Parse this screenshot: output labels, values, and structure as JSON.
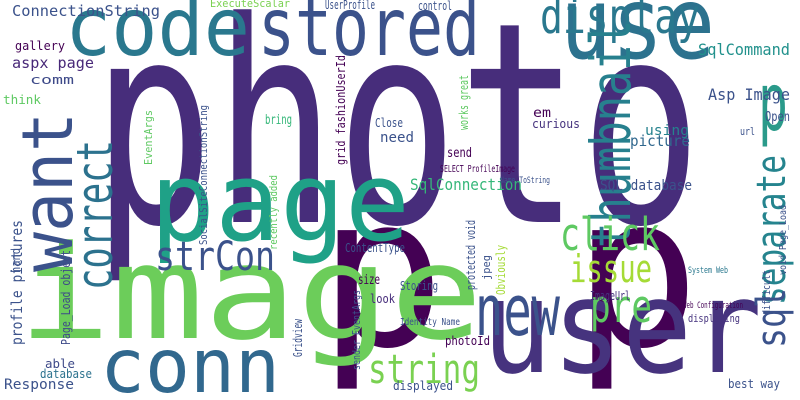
{
  "words": [
    {
      "text": "photo",
      "color": "#472d7b"
    },
    {
      "text": "p p",
      "color": "#440154"
    },
    {
      "text": "user",
      "color": "#46337e"
    },
    {
      "text": "image",
      "color": "#6ccd5a"
    },
    {
      "text": "page",
      "color": "#1fa187"
    },
    {
      "text": "code",
      "color": "#2a788e"
    },
    {
      "text": "stored",
      "color": "#3b528b"
    },
    {
      "text": "use",
      "color": "#2c728e"
    },
    {
      "text": "display",
      "color": "#2a788e"
    },
    {
      "text": "want",
      "color": "#3b528b"
    },
    {
      "text": "correct",
      "color": "#2c728e"
    },
    {
      "text": "thumbnail",
      "color": "#27808e"
    },
    {
      "text": "p",
      "color": "#2a9a8a"
    },
    {
      "text": "conn",
      "color": "#31688e"
    },
    {
      "text": "new",
      "color": "#3b528b"
    },
    {
      "text": "click",
      "color": "#5ec962"
    },
    {
      "text": "issue",
      "color": "#a5db36"
    },
    {
      "text": "pre",
      "color": "#5ec962"
    },
    {
      "text": "separate",
      "color": "#25848e"
    },
    {
      "text": "sql",
      "color": "#3b528b"
    },
    {
      "text": "strCon",
      "color": "#3b528b"
    },
    {
      "text": "string",
      "color": "#7ad151"
    },
    {
      "text": "SqlCommand",
      "color": "#21918c"
    },
    {
      "text": "Asp Image",
      "color": "#3b528b"
    },
    {
      "text": "ConnectionString",
      "color": "#3b528b"
    },
    {
      "text": "aspx page",
      "color": "#482878"
    },
    {
      "text": "gallery",
      "color": "#440154"
    },
    {
      "text": "comm",
      "color": "#3e4a89"
    },
    {
      "text": "think",
      "color": "#5ec962"
    },
    {
      "text": "profile pictures",
      "color": "#3b528b"
    },
    {
      "text": "Page_Load object",
      "color": "#3e4a89"
    },
    {
      "text": "able",
      "color": "#3e4a89"
    },
    {
      "text": "database",
      "color": "#2c728e"
    },
    {
      "text": "Response",
      "color": "#3b528b"
    },
    {
      "text": "SqlConnection",
      "color": "#35b779"
    },
    {
      "text": "SQL database",
      "color": "#3b528b"
    },
    {
      "text": "picture",
      "color": "#31688e"
    },
    {
      "text": "using",
      "color": "#26828e"
    },
    {
      "text": "Open",
      "color": "#3b528b"
    },
    {
      "text": "em",
      "color": "#440154"
    },
    {
      "text": "curious",
      "color": "#46337e"
    },
    {
      "text": "Close",
      "color": "#3b528b"
    },
    {
      "text": "need",
      "color": "#3b528b"
    },
    {
      "text": "bring",
      "color": "#35b779"
    },
    {
      "text": "size",
      "color": "#440154"
    },
    {
      "text": "Storing",
      "color": "#3b528b"
    },
    {
      "text": "look",
      "color": "#472d7b"
    },
    {
      "text": "photoId",
      "color": "#440154"
    },
    {
      "text": "displayed",
      "color": "#3b528b"
    },
    {
      "text": "ImageUrl",
      "color": "#46337e"
    },
    {
      "text": "displaying",
      "color": "#46337e"
    },
    {
      "text": "best way",
      "color": "#3b528b"
    },
    {
      "text": "ExecuteScalar",
      "color": "#7ad151"
    },
    {
      "text": "UserProfile",
      "color": "#3b528b"
    },
    {
      "text": "control",
      "color": "#3b528b"
    },
    {
      "text": "ContentType",
      "color": "#3b528b"
    },
    {
      "text": "send",
      "color": "#440154"
    },
    {
      "text": "Gridview",
      "color": "#3b528b"
    },
    {
      "text": "recently added",
      "color": "#5ec962"
    },
    {
      "text": "Obviously",
      "color": "#a5db36"
    },
    {
      "text": "jpeg",
      "color": "#3b528b"
    },
    {
      "text": "works great",
      "color": "#5ec962"
    },
    {
      "text": "url",
      "color": "#3b528b"
    },
    {
      "text": "difficult",
      "color": "#3b528b"
    },
    {
      "text": "void Page_Load",
      "color": "#3b528b"
    },
    {
      "text": "SocialSiteConnectionString",
      "color": "#3b528b"
    },
    {
      "text": "EventArgs",
      "color": "#5ec962"
    },
    {
      "text": "grid fashionUserId",
      "color": "#440154"
    },
    {
      "text": "Identity Name",
      "color": "#3b528b"
    },
    {
      "text": "sender EventArgs",
      "color": "#3b528b"
    },
    {
      "text": "Web Configuration",
      "color": "#440154"
    },
    {
      "text": "System Web",
      "color": "#2a788e"
    },
    {
      "text": "protected void",
      "color": "#3b528b"
    },
    {
      "text": "Name ToString",
      "color": "#3b528b"
    },
    {
      "text": "SELECT ProfileImage",
      "color": "#440154"
    },
    {
      "text": "hand",
      "color": "#3b528b"
    }
  ]
}
